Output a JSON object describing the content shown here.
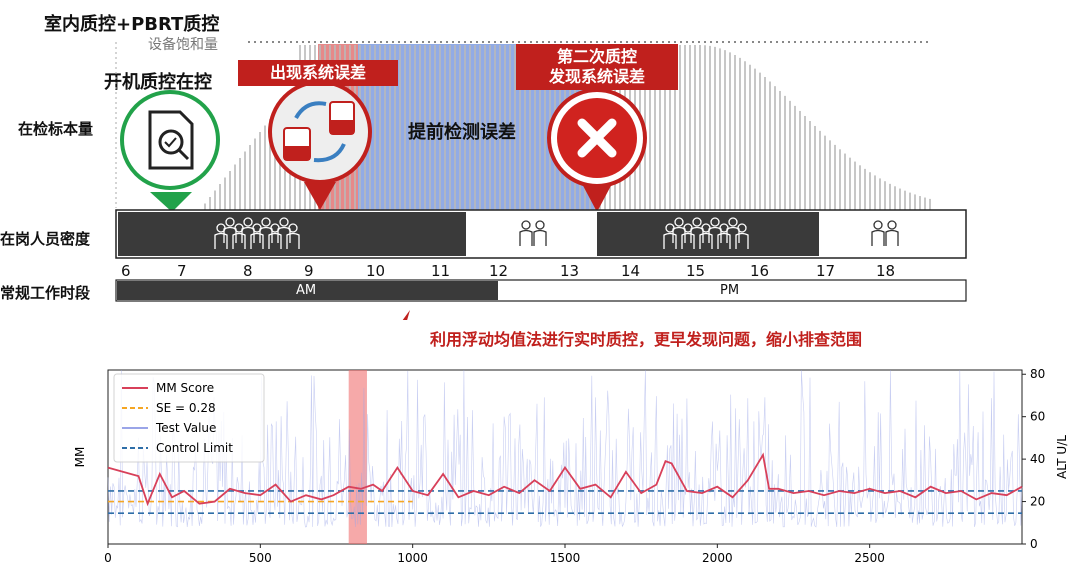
{
  "header": {
    "title": "室内质控+PBRT质控",
    "capacity_label": "设备饱和量",
    "opening_qc_label": "开机质控在控",
    "error_appear_label": "出现系统误差",
    "second_qc_line1": "第二次质控",
    "second_qc_line2": "发现系统误差",
    "early_detect_label": "提前检测误差"
  },
  "rows": {
    "volume_label": "在检标本量",
    "staff_label": "在岗人员密度",
    "hours_label": "常规工作时段"
  },
  "timeline": {
    "hours": [
      "6",
      "7",
      "8",
      "9",
      "10",
      "11",
      "12",
      "13",
      "14",
      "15",
      "16",
      "17",
      "18"
    ],
    "am_label": "AM",
    "pm_label": "PM"
  },
  "callout": "利用浮动均值法进行实时质控，更早发现问题，缩小排查范围",
  "colors": {
    "alert_red": "#c0201d",
    "dark_bar": "#3a3a3a",
    "blue_shade": "#5b7fd6",
    "mm_score": "#d8405a",
    "se_line": "#f5a623",
    "control_limit": "#2e6ea8",
    "test_value": "#9aa5e8"
  },
  "icons": [
    "document-check-icon",
    "reagent-cycle-icon",
    "red-x-icon",
    "people-group-icon"
  ],
  "chart_data": {
    "type": "line",
    "xlim": [
      0,
      3000
    ],
    "x_ticks": [
      0,
      500,
      1000,
      1500,
      2000,
      2500
    ],
    "ylabel": "MM",
    "y2label": "ALT U/L",
    "ylim": [
      0,
      82
    ],
    "y_ticks": [
      0,
      20,
      40,
      60,
      80
    ],
    "legend": [
      "MM Score",
      "SE = 0.28",
      "Test Value",
      "Control Limit"
    ],
    "legend_position": "upper-left",
    "se_value": 20,
    "control_limits": [
      14.5,
      25
    ],
    "highlight_range": [
      790,
      850
    ],
    "mm_score": {
      "x": [
        0,
        50,
        100,
        130,
        170,
        210,
        250,
        300,
        350,
        400,
        450,
        500,
        550,
        600,
        650,
        700,
        740,
        790,
        830,
        870,
        900,
        950,
        1000,
        1050,
        1100,
        1150,
        1200,
        1250,
        1300,
        1350,
        1400,
        1450,
        1500,
        1550,
        1600,
        1650,
        1700,
        1750,
        1800,
        1830,
        1850,
        1900,
        1950,
        2000,
        2050,
        2100,
        2150,
        2170,
        2200,
        2250,
        2300,
        2350,
        2400,
        2450,
        2500,
        2550,
        2600,
        2650,
        2700,
        2750,
        2800,
        2850,
        2900,
        2950,
        3000
      ],
      "y": [
        36,
        34,
        32,
        19,
        33,
        22,
        25,
        19,
        20,
        26,
        24,
        23,
        28,
        20,
        23,
        21,
        23,
        27,
        26,
        28,
        25,
        36,
        25,
        23,
        33,
        22,
        25,
        23,
        27,
        24,
        30,
        25,
        36,
        26,
        28,
        22,
        34,
        24,
        28,
        39,
        38,
        25,
        24,
        27,
        22,
        30,
        42,
        26,
        26,
        24,
        25,
        23,
        25,
        24,
        26,
        24,
        25,
        22,
        27,
        24,
        25,
        21,
        24,
        23,
        27
      ]
    }
  }
}
